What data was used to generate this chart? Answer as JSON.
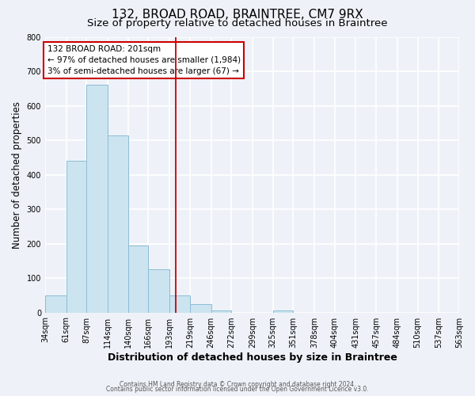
{
  "title": "132, BROAD ROAD, BRAINTREE, CM7 9RX",
  "subtitle": "Size of property relative to detached houses in Braintree",
  "xlabel": "Distribution of detached houses by size in Braintree",
  "ylabel": "Number of detached properties",
  "bin_edges": [
    34,
    61,
    87,
    114,
    140,
    166,
    193,
    219,
    246,
    272,
    299,
    325,
    351,
    378,
    404,
    431,
    457,
    484,
    510,
    537,
    563
  ],
  "bar_heights": [
    50,
    440,
    660,
    515,
    195,
    125,
    50,
    25,
    5,
    0,
    0,
    5,
    0,
    0,
    0,
    0,
    0,
    0,
    0,
    0
  ],
  "bar_color": "#cce4f0",
  "bar_edge_color": "#8bbcd4",
  "property_line_x": 201,
  "property_line_color": "#cc0000",
  "annotation_title": "132 BROAD ROAD: 201sqm",
  "annotation_line1": "← 97% of detached houses are smaller (1,984)",
  "annotation_line2": "3% of semi-detached houses are larger (67) →",
  "annotation_box_color": "#ffffff",
  "annotation_box_edge_color": "#cc0000",
  "ylim": [
    0,
    800
  ],
  "yticks": [
    0,
    100,
    200,
    300,
    400,
    500,
    600,
    700,
    800
  ],
  "footer_line1": "Contains HM Land Registry data © Crown copyright and database right 2024.",
  "footer_line2": "Contains public sector information licensed under the Open Government Licence v3.0.",
  "background_color": "#eef2f8",
  "grid_color": "#ffffff",
  "title_fontsize": 11,
  "subtitle_fontsize": 9.5,
  "tick_label_fontsize": 7,
  "ylabel_fontsize": 8.5,
  "xlabel_fontsize": 9,
  "annotation_fontsize": 7.5,
  "footer_fontsize": 5.5
}
